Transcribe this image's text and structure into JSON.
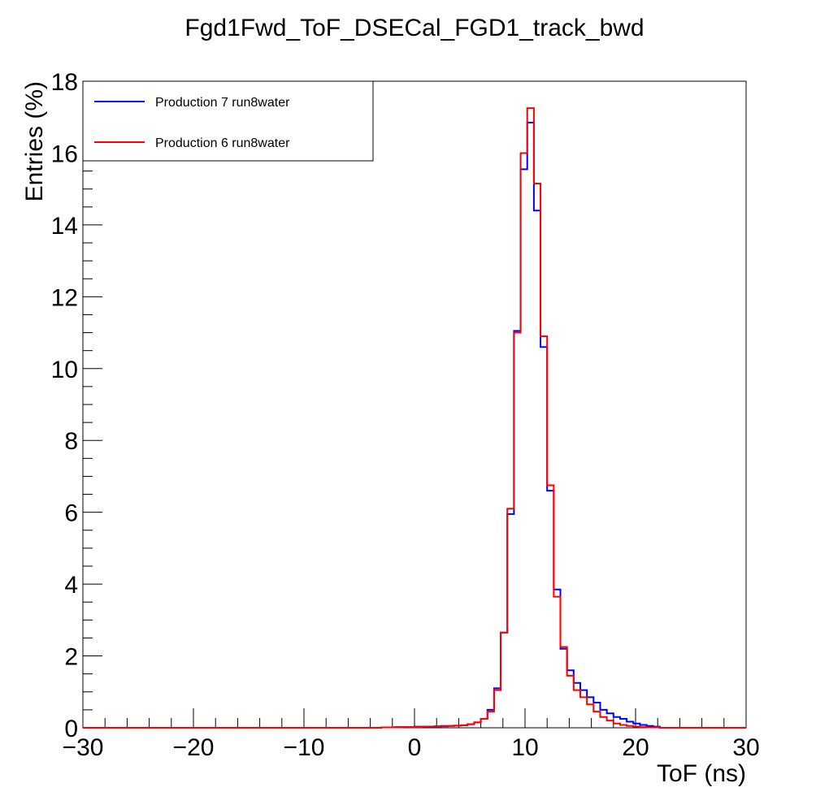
{
  "chart_data": {
    "type": "histogram-step",
    "title": "Fgd1Fwd_ToF_DSECal_FGD1_track_bwd",
    "xlabel": "ToF (ns)",
    "ylabel": "Entries (%)",
    "xlim": [
      -30,
      30
    ],
    "ylim": [
      0,
      18
    ],
    "x_ticks": [
      -30,
      -20,
      -10,
      0,
      10,
      20,
      30
    ],
    "y_ticks": [
      0,
      2,
      4,
      6,
      8,
      10,
      12,
      14,
      16,
      18
    ],
    "x_tick_labels": [
      "−30",
      "−20",
      "−10",
      "0",
      "10",
      "20",
      "30"
    ],
    "y_tick_labels": [
      "0",
      "2",
      "4",
      "6",
      "8",
      "10",
      "12",
      "14",
      "16",
      "18"
    ],
    "bin_width": 0.6,
    "grid": false,
    "legend_position": "top-left",
    "series": [
      {
        "name": "Production 7 run8water",
        "color": "#0000ff",
        "bins": [
          [
            -3.0,
            0.01
          ],
          [
            -2.4,
            0.01
          ],
          [
            -1.8,
            0.02
          ],
          [
            -1.2,
            0.02
          ],
          [
            -0.6,
            0.02
          ],
          [
            0.0,
            0.03
          ],
          [
            0.6,
            0.03
          ],
          [
            1.2,
            0.03
          ],
          [
            1.8,
            0.04
          ],
          [
            2.4,
            0.05
          ],
          [
            3.0,
            0.05
          ],
          [
            3.6,
            0.06
          ],
          [
            4.2,
            0.07
          ],
          [
            4.8,
            0.1
          ],
          [
            5.4,
            0.15
          ],
          [
            6.0,
            0.25
          ],
          [
            6.6,
            0.5
          ],
          [
            7.2,
            1.1
          ],
          [
            7.8,
            2.65
          ],
          [
            8.4,
            5.95
          ],
          [
            9.0,
            11.05
          ],
          [
            9.6,
            15.55
          ],
          [
            10.2,
            16.85
          ],
          [
            10.8,
            14.4
          ],
          [
            11.4,
            10.6
          ],
          [
            12.0,
            6.6
          ],
          [
            12.6,
            3.85
          ],
          [
            13.2,
            2.2
          ],
          [
            13.8,
            1.6
          ],
          [
            14.4,
            1.25
          ],
          [
            15.0,
            1.05
          ],
          [
            15.6,
            0.85
          ],
          [
            16.2,
            0.7
          ],
          [
            16.8,
            0.5
          ],
          [
            17.4,
            0.4
          ],
          [
            18.0,
            0.3
          ],
          [
            18.6,
            0.25
          ],
          [
            19.2,
            0.17
          ],
          [
            19.8,
            0.12
          ],
          [
            20.4,
            0.08
          ],
          [
            21.0,
            0.05
          ],
          [
            21.6,
            0.03
          ]
        ]
      },
      {
        "name": "Production 6 run8water",
        "color": "#ff0000",
        "bins": [
          [
            -3.0,
            0.01
          ],
          [
            -2.4,
            0.01
          ],
          [
            -1.8,
            0.01
          ],
          [
            -1.2,
            0.02
          ],
          [
            -0.6,
            0.02
          ],
          [
            0.0,
            0.02
          ],
          [
            0.6,
            0.03
          ],
          [
            1.2,
            0.03
          ],
          [
            1.8,
            0.04
          ],
          [
            2.4,
            0.04
          ],
          [
            3.0,
            0.05
          ],
          [
            3.6,
            0.06
          ],
          [
            4.2,
            0.07
          ],
          [
            4.8,
            0.1
          ],
          [
            5.4,
            0.15
          ],
          [
            6.0,
            0.25
          ],
          [
            6.6,
            0.45
          ],
          [
            7.2,
            1.05
          ],
          [
            7.8,
            2.65
          ],
          [
            8.4,
            6.1
          ],
          [
            9.0,
            11.0
          ],
          [
            9.6,
            16.0
          ],
          [
            10.2,
            17.25
          ],
          [
            10.8,
            15.15
          ],
          [
            11.4,
            10.9
          ],
          [
            12.0,
            6.75
          ],
          [
            12.6,
            3.65
          ],
          [
            13.2,
            2.25
          ],
          [
            13.8,
            1.45
          ],
          [
            14.4,
            1.05
          ],
          [
            15.0,
            0.85
          ],
          [
            15.6,
            0.65
          ],
          [
            16.2,
            0.45
          ],
          [
            16.8,
            0.3
          ],
          [
            17.4,
            0.2
          ],
          [
            18.0,
            0.12
          ],
          [
            18.6,
            0.08
          ],
          [
            19.2,
            0.05
          ],
          [
            19.8,
            0.03
          ],
          [
            20.4,
            0.02
          ],
          [
            21.0,
            0.01
          ],
          [
            21.6,
            0.01
          ]
        ]
      }
    ]
  }
}
